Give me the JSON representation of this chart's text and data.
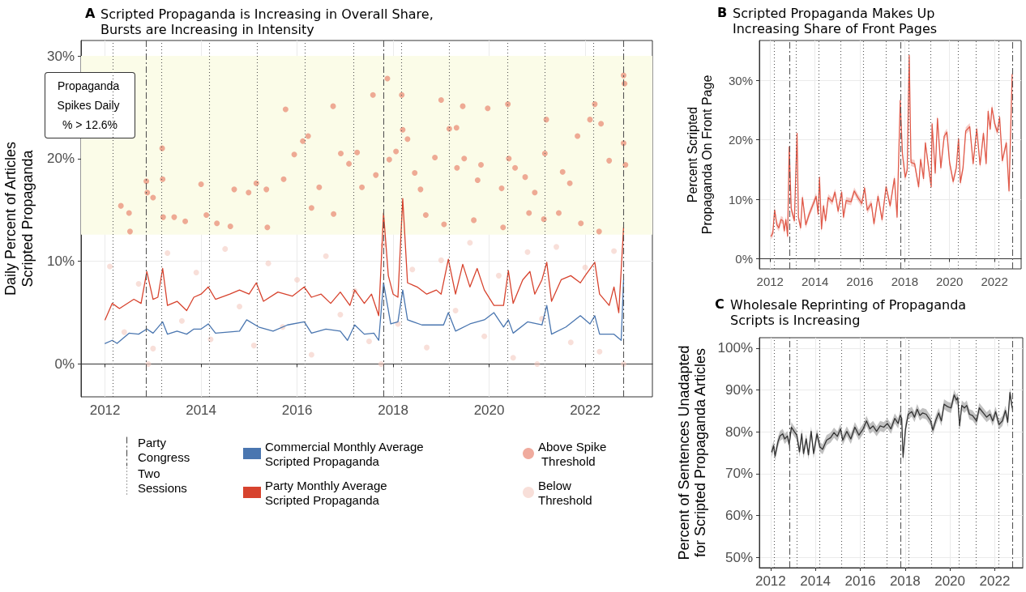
{
  "chart_data": [
    {
      "type": "line",
      "title": "A Scripted Propaganda is Increasing in Overall Share, Bursts are Increasing in Intensity",
      "ylabel": "Daily Percent of Articles Scripted Propaganda",
      "xlim": [
        2011.5,
        2023.4
      ],
      "xticks": [
        2012,
        2014,
        2016,
        2018,
        2020,
        2022
      ],
      "ylim": [
        -3.2,
        31.5
      ],
      "yticks": [
        {
          "value": 0,
          "label": "0%"
        },
        {
          "value": 10,
          "label": "10%"
        },
        {
          "value": 20,
          "label": "20%"
        },
        {
          "value": 30,
          "label": "30%"
        }
      ],
      "grid": true,
      "legend": "bottom",
      "bands": [
        {
          "axis": "y",
          "from": 12.6,
          "to": 30,
          "label": "Propaganda Spikes Daily % > 12.6%",
          "color": "#fbfce8"
        }
      ],
      "ref_lines": [
        {
          "axis": "x",
          "value": 2012.86,
          "label": "Party Congress",
          "color": "#555555",
          "line_style": "dashed"
        },
        {
          "axis": "x",
          "value": 2017.8,
          "color": "#555555",
          "line_style": "dashed"
        },
        {
          "axis": "x",
          "value": 2022.79,
          "color": "#555555",
          "line_style": "dashed"
        },
        {
          "axis": "x",
          "value": 2012.17,
          "label": "Two Sessions",
          "color": "#555555",
          "line_style": "dotted"
        },
        {
          "axis": "x",
          "value": 2013.17,
          "color": "#555555",
          "line_style": "dotted"
        },
        {
          "axis": "x",
          "value": 2014.17,
          "color": "#555555",
          "line_style": "dotted"
        },
        {
          "axis": "x",
          "value": 2015.16,
          "color": "#555555",
          "line_style": "dotted"
        },
        {
          "axis": "x",
          "value": 2016.17,
          "color": "#555555",
          "line_style": "dotted"
        },
        {
          "axis": "x",
          "value": 2017.17,
          "color": "#555555",
          "line_style": "dotted"
        },
        {
          "axis": "x",
          "value": 2018.17,
          "color": "#555555",
          "line_style": "dotted"
        },
        {
          "axis": "x",
          "value": 2019.17,
          "color": "#555555",
          "line_style": "dotted"
        },
        {
          "axis": "x",
          "value": 2020.39,
          "color": "#555555",
          "line_style": "dotted"
        },
        {
          "axis": "x",
          "value": 2021.16,
          "color": "#555555",
          "line_style": "dotted"
        },
        {
          "axis": "x",
          "value": 2022.18,
          "color": "#555555",
          "line_style": "dotted"
        }
      ],
      "series": [
        {
          "type": "scatter",
          "name": "Below Threshold",
          "color": "#f3c4ba",
          "marker": "circle",
          "x": [
            2012.1,
            2012.4,
            2012.7,
            2013.0,
            2013.3,
            2013.6,
            2013.9,
            2014.2,
            2014.5,
            2014.8,
            2015.1,
            2015.4,
            2015.7,
            2016.0,
            2016.3,
            2016.6,
            2016.9,
            2017.2,
            2017.5,
            2017.8,
            2018.1,
            2018.4,
            2018.7,
            2019.0,
            2019.3,
            2019.6,
            2019.9,
            2020.2,
            2020.5,
            2020.8,
            2021.1,
            2021.4,
            2021.7,
            2022.0,
            2022.3,
            2022.6,
            2022.8,
            2012.9,
            2017.75,
            2021.0
          ],
          "values": [
            9.5,
            3.1,
            7.8,
            1.5,
            10.8,
            4.2,
            8.9,
            2.4,
            11.2,
            5.6,
            1.8,
            9.8,
            3.6,
            8.2,
            0.9,
            10.5,
            4.8,
            7.1,
            2.2,
            11.6,
            3.9,
            9.2,
            1.6,
            10.1,
            5.2,
            11.8,
            2.7,
            8.6,
            0.6,
            10.9,
            4.4,
            11.4,
            2.1,
            9.4,
            1.2,
            11.0,
            0.0,
            0.0,
            0.0,
            0.0
          ]
        },
        {
          "type": "scatter",
          "name": "Above Spike Threshold",
          "color": "#e3664f",
          "marker": "circle",
          "x": [
            2012.33,
            2012.5,
            2012.52,
            2012.86,
            2012.88,
            2013.0,
            2013.19,
            2013.2,
            2013.21,
            2013.44,
            2013.67,
            2014.0,
            2014.11,
            2014.33,
            2014.69,
            2014.99,
            2015.15,
            2015.36,
            2015.72,
            2015.76,
            2015.94,
            2016.12,
            2016.23,
            2016.46,
            2016.75,
            2016.91,
            2017.08,
            2017.25,
            2017.35,
            2017.58,
            2017.64,
            2017.88,
            2017.92,
            2018.06,
            2018.18,
            2018.2,
            2018.3,
            2018.45,
            2018.57,
            2018.87,
            2019.0,
            2019.17,
            2019.32,
            2019.45,
            2019.48,
            2019.33,
            2019.76,
            2019.83,
            2019.97,
            2020.26,
            2020.39,
            2020.41,
            2020.54,
            2020.75,
            2020.95,
            2021.19,
            2021.16,
            2021.53,
            2021.68,
            2021.84,
            2022.1,
            2022.2,
            2022.33,
            2022.5,
            2022.8,
            2022.8,
            2022.82,
            2022.84,
            2019.68,
            2021.14,
            2021.91,
            2020.29,
            2019.06,
            2018.68,
            2016.76,
            2016.3,
            2015.38,
            2014.61,
            2020.83,
            2021.45,
            2022.29
          ],
          "values": [
            15.4,
            14.7,
            12.9,
            17.8,
            16.7,
            16.2,
            21.0,
            18.0,
            14.3,
            14.3,
            13.9,
            17.5,
            14.5,
            13.7,
            17.0,
            16.7,
            17.6,
            17.0,
            18.0,
            24.8,
            20.4,
            21.7,
            22.2,
            17.2,
            25.1,
            20.5,
            19.5,
            20.6,
            17.2,
            26.2,
            18.4,
            27.8,
            19.9,
            20.7,
            26.2,
            22.8,
            21.9,
            18.6,
            17.0,
            20.1,
            25.7,
            22.9,
            23.0,
            25.1,
            20.0,
            19.1,
            17.9,
            19.4,
            24.9,
            17.1,
            25.3,
            20.0,
            19.1,
            18.2,
            16.7,
            23.8,
            20.5,
            18.7,
            17.6,
            22.2,
            23.8,
            25.3,
            23.4,
            19.8,
            21.5,
            28.1,
            27.3,
            19.4,
            14.0,
            14.1,
            13.7,
            13.3,
            13.6,
            14.5,
            14.6,
            15.2,
            13.3,
            13.4,
            14.7,
            14.7,
            12.9
          ]
        },
        {
          "type": "line",
          "name": "Commercial Monthly Average Scripted Propaganda",
          "color": "#4a76b0",
          "x": [
            2012.0,
            2012.15,
            2012.25,
            2012.5,
            2012.7,
            2012.87,
            2013.0,
            2013.2,
            2013.3,
            2013.5,
            2013.7,
            2013.85,
            2014.0,
            2014.15,
            2014.3,
            2014.8,
            2014.95,
            2015.2,
            2015.5,
            2015.8,
            2016.15,
            2016.3,
            2016.6,
            2016.9,
            2017.05,
            2017.2,
            2017.4,
            2017.6,
            2017.7,
            2017.8,
            2017.95,
            2018.1,
            2018.2,
            2018.3,
            2018.6,
            2018.9,
            2019.05,
            2019.15,
            2019.3,
            2019.6,
            2019.9,
            2020.1,
            2020.3,
            2020.4,
            2020.5,
            2020.8,
            2021.1,
            2021.2,
            2021.3,
            2021.6,
            2021.9,
            2022.1,
            2022.2,
            2022.3,
            2022.6,
            2022.75,
            2022.8
          ],
          "values": [
            2.0,
            2.3,
            2.0,
            3.0,
            2.9,
            3.4,
            3.0,
            4.1,
            2.9,
            3.2,
            2.9,
            3.4,
            3.4,
            3.9,
            3.0,
            3.2,
            4.3,
            3.6,
            3.2,
            3.8,
            4.1,
            3.0,
            3.4,
            3.2,
            2.3,
            3.8,
            2.9,
            3.0,
            2.3,
            7.9,
            3.9,
            4.1,
            7.2,
            4.3,
            3.8,
            3.8,
            3.8,
            5.0,
            3.2,
            3.9,
            4.3,
            5.0,
            3.6,
            4.3,
            3.0,
            4.1,
            3.8,
            5.7,
            2.9,
            3.6,
            4.7,
            3.9,
            4.7,
            2.9,
            2.9,
            2.3,
            8.2
          ]
        },
        {
          "type": "line",
          "name": "Party Monthly Average Scripted Propaganda",
          "color": "#d7432e",
          "x": [
            2012.0,
            2012.15,
            2012.3,
            2012.6,
            2012.75,
            2012.87,
            2013.0,
            2013.1,
            2013.2,
            2013.3,
            2013.5,
            2013.7,
            2013.85,
            2014.0,
            2014.15,
            2014.3,
            2014.6,
            2014.8,
            2015.0,
            2015.15,
            2015.3,
            2015.6,
            2015.9,
            2016.15,
            2016.3,
            2016.5,
            2016.7,
            2016.9,
            2017.1,
            2017.2,
            2017.4,
            2017.55,
            2017.7,
            2017.8,
            2017.9,
            2018.0,
            2018.1,
            2018.2,
            2018.3,
            2018.5,
            2018.7,
            2018.9,
            2019.0,
            2019.15,
            2019.3,
            2019.45,
            2019.6,
            2019.75,
            2019.9,
            2020.1,
            2020.3,
            2020.4,
            2020.5,
            2020.7,
            2020.85,
            2020.95,
            2021.1,
            2021.2,
            2021.3,
            2021.5,
            2021.7,
            2021.9,
            2022.0,
            2022.2,
            2022.3,
            2022.5,
            2022.6,
            2022.7,
            2022.8
          ],
          "values": [
            4.3,
            5.9,
            5.4,
            6.3,
            5.9,
            9.0,
            6.3,
            6.5,
            9.3,
            5.7,
            6.1,
            5.2,
            6.5,
            6.8,
            7.5,
            6.3,
            6.8,
            7.2,
            6.8,
            7.9,
            6.1,
            7.0,
            6.6,
            7.5,
            6.5,
            6.8,
            5.9,
            7.0,
            5.7,
            7.2,
            5.9,
            6.8,
            4.7,
            14.7,
            8.6,
            6.8,
            6.5,
            16.1,
            7.9,
            7.5,
            6.8,
            7.2,
            6.8,
            10.2,
            6.8,
            9.7,
            7.5,
            9.3,
            7.2,
            5.7,
            5.7,
            9.1,
            5.9,
            8.2,
            9.0,
            6.8,
            8.2,
            9.9,
            6.1,
            8.2,
            8.6,
            7.9,
            8.6,
            9.9,
            6.8,
            5.7,
            7.5,
            5.0,
            13.3
          ]
        }
      ]
    },
    {
      "type": "line",
      "title": "B Scripted Propaganda Makes Up Increasing Share of Front Pages",
      "ylabel": "Percent Scripted Propaganda On Front Page",
      "xlim": [
        2011.52,
        2023.19
      ],
      "xticks": [
        2012,
        2014,
        2016,
        2018,
        2020,
        2022
      ],
      "ylim": [
        -1.7,
        36.7
      ],
      "yticks": [
        {
          "value": 0,
          "label": "0%"
        },
        {
          "value": 10,
          "label": "10%"
        },
        {
          "value": 20,
          "label": "20%"
        },
        {
          "value": 30,
          "label": "30%"
        }
      ],
      "grid": true,
      "ref_lines": [
        {
          "axis": "x",
          "value": 2012.86,
          "color": "#555555",
          "line_style": "dashed"
        },
        {
          "axis": "x",
          "value": 2017.8,
          "color": "#555555",
          "line_style": "dashed"
        },
        {
          "axis": "x",
          "value": 2022.79,
          "color": "#555555",
          "line_style": "dashed"
        },
        {
          "axis": "x",
          "value": 2012.17,
          "color": "#555555",
          "line_style": "dotted"
        },
        {
          "axis": "x",
          "value": 2013.17,
          "color": "#555555",
          "line_style": "dotted"
        },
        {
          "axis": "x",
          "value": 2014.17,
          "color": "#555555",
          "line_style": "dotted"
        },
        {
          "axis": "x",
          "value": 2015.16,
          "color": "#555555",
          "line_style": "dotted"
        },
        {
          "axis": "x",
          "value": 2016.17,
          "color": "#555555",
          "line_style": "dotted"
        },
        {
          "axis": "x",
          "value": 2017.17,
          "color": "#555555",
          "line_style": "dotted"
        },
        {
          "axis": "x",
          "value": 2018.17,
          "color": "#555555",
          "line_style": "dotted"
        },
        {
          "axis": "x",
          "value": 2019.17,
          "color": "#555555",
          "line_style": "dotted"
        },
        {
          "axis": "x",
          "value": 2020.39,
          "color": "#555555",
          "line_style": "dotted"
        },
        {
          "axis": "x",
          "value": 2021.16,
          "color": "#555555",
          "line_style": "dotted"
        },
        {
          "axis": "x",
          "value": 2022.18,
          "color": "#555555",
          "line_style": "dotted"
        }
      ],
      "series": [
        {
          "type": "line",
          "color": "#e05a4a",
          "x": [
            2012.04,
            2012.12,
            2012.2,
            2012.3,
            2012.39,
            2012.48,
            2012.57,
            2012.63,
            2012.7,
            2012.78,
            2012.85,
            2012.94,
            2013.08,
            2013.2,
            2013.26,
            2013.36,
            2013.44,
            2013.59,
            2013.74,
            2013.93,
            2014.05,
            2014.14,
            2014.2,
            2014.29,
            2014.38,
            2014.47,
            2014.59,
            2014.77,
            2014.89,
            2015.03,
            2015.19,
            2015.27,
            2015.39,
            2015.61,
            2015.75,
            2015.91,
            2016.09,
            2016.21,
            2016.33,
            2016.51,
            2016.63,
            2016.81,
            2016.99,
            2017.17,
            2017.35,
            2017.54,
            2017.66,
            2017.8,
            2017.9,
            2018.02,
            2018.11,
            2018.2,
            2018.28,
            2018.44,
            2018.62,
            2018.71,
            2018.84,
            2018.92,
            2019.08,
            2019.18,
            2019.22,
            2019.36,
            2019.46,
            2019.61,
            2019.76,
            2019.88,
            2020.0,
            2020.16,
            2020.3,
            2020.4,
            2020.48,
            2020.6,
            2020.72,
            2020.9,
            2021.05,
            2021.21,
            2021.36,
            2021.51,
            2021.63,
            2021.72,
            2021.81,
            2021.89,
            2022.01,
            2022.13,
            2022.23,
            2022.35,
            2022.53,
            2022.65,
            2022.79
          ],
          "values": [
            3.8,
            4.3,
            8.2,
            5.7,
            5.2,
            6.6,
            6.4,
            4.7,
            6.6,
            3.8,
            18.8,
            8.4,
            6.4,
            21.1,
            7.0,
            5.2,
            10.3,
            5.7,
            7.5,
            9.3,
            10.5,
            7.5,
            13.7,
            5.0,
            8.9,
            6.4,
            10.3,
            9.6,
            11.2,
            8.0,
            11.2,
            7.0,
            9.8,
            9.6,
            11.4,
            10.3,
            9.3,
            11.9,
            8.2,
            9.3,
            5.9,
            10.5,
            6.6,
            12.1,
            8.9,
            13.5,
            7.0,
            26.6,
            17.6,
            13.7,
            14.9,
            34.2,
            16.2,
            16.0,
            12.1,
            16.7,
            13.5,
            19.5,
            14.9,
            12.1,
            22.7,
            14.4,
            23.6,
            15.3,
            20.6,
            21.3,
            16.2,
            13.0,
            15.3,
            20.2,
            12.8,
            15.3,
            21.5,
            22.2,
            16.0,
            21.8,
            15.8,
            21.1,
            16.0,
            24.8,
            21.8,
            25.4,
            22.7,
            21.3,
            23.8,
            16.5,
            19.5,
            11.4,
            31.0
          ],
          "lower": [
            3.2,
            3.7,
            7.6,
            5.1,
            4.6,
            6.0,
            5.8,
            4.1,
            6.0,
            3.2,
            18.2,
            7.8,
            5.8,
            20.5,
            6.4,
            4.6,
            9.7,
            5.1,
            6.9,
            8.7,
            9.9,
            6.9,
            13.1,
            4.4,
            8.3,
            5.8,
            9.7,
            9.0,
            10.6,
            7.4,
            10.6,
            6.4,
            9.2,
            9.0,
            10.8,
            9.7,
            8.7,
            11.3,
            7.6,
            8.7,
            5.3,
            9.9,
            6.0,
            11.5,
            8.3,
            12.9,
            6.4,
            26.0,
            17.0,
            13.1,
            14.3,
            33.6,
            15.6,
            15.4,
            11.5,
            16.1,
            12.9,
            18.9,
            14.3,
            11.5,
            22.1,
            13.8,
            23.0,
            14.7,
            20.0,
            20.7,
            15.6,
            12.4,
            14.7,
            19.6,
            12.2,
            14.7,
            20.9,
            21.6,
            15.4,
            21.2,
            15.2,
            20.5,
            15.4,
            24.2,
            21.2,
            24.8,
            22.1,
            20.7,
            23.2,
            15.9,
            18.9,
            10.8,
            30.4
          ],
          "upper": [
            4.4,
            4.9,
            8.8,
            6.3,
            5.8,
            7.2,
            7.0,
            5.3,
            7.2,
            4.4,
            19.4,
            9.0,
            7.0,
            21.7,
            7.6,
            5.8,
            10.9,
            6.3,
            8.1,
            9.9,
            11.1,
            8.1,
            14.3,
            5.6,
            9.5,
            7.0,
            10.9,
            10.2,
            11.8,
            8.6,
            11.8,
            7.6,
            10.4,
            10.2,
            12.0,
            10.9,
            9.9,
            12.5,
            8.8,
            9.9,
            6.5,
            11.1,
            7.2,
            12.7,
            9.5,
            14.1,
            7.6,
            27.2,
            18.2,
            14.3,
            15.5,
            34.8,
            16.8,
            16.6,
            12.7,
            17.3,
            14.1,
            20.1,
            15.5,
            12.7,
            23.3,
            15.0,
            24.2,
            15.9,
            21.2,
            21.9,
            16.8,
            13.6,
            15.9,
            20.8,
            13.4,
            15.9,
            22.1,
            22.8,
            16.6,
            22.4,
            16.4,
            21.7,
            16.6,
            25.4,
            22.4,
            26.0,
            23.3,
            21.9,
            24.4,
            17.1,
            20.1,
            12.0,
            31.6
          ]
        }
      ]
    },
    {
      "type": "line",
      "title": "C Wholesale Reprinting of Propaganda Scripts is Increasing",
      "ylabel": "Percent of Sentences Unadapted for Scripted Propaganda Articles",
      "xlim": [
        2011.5,
        2023.25
      ],
      "xticks": [
        2012,
        2014,
        2016,
        2018,
        2020,
        2022
      ],
      "ylim": [
        47.5,
        102.5
      ],
      "yticks": [
        {
          "value": 50,
          "label": "50%"
        },
        {
          "value": 60,
          "label": "60%"
        },
        {
          "value": 70,
          "label": "70%"
        },
        {
          "value": 80,
          "label": "80%"
        },
        {
          "value": 90,
          "label": "90%"
        },
        {
          "value": 100,
          "label": "100%"
        }
      ],
      "grid": true,
      "ref_lines": [
        {
          "axis": "x",
          "value": 2012.86,
          "color": "#555555",
          "line_style": "dashed"
        },
        {
          "axis": "x",
          "value": 2017.8,
          "color": "#555555",
          "line_style": "dashed"
        },
        {
          "axis": "x",
          "value": 2022.79,
          "color": "#555555",
          "line_style": "dashed"
        },
        {
          "axis": "x",
          "value": 2012.17,
          "color": "#555555",
          "line_style": "dotted"
        },
        {
          "axis": "x",
          "value": 2013.17,
          "color": "#555555",
          "line_style": "dotted"
        },
        {
          "axis": "x",
          "value": 2014.17,
          "color": "#555555",
          "line_style": "dotted"
        },
        {
          "axis": "x",
          "value": 2015.16,
          "color": "#555555",
          "line_style": "dotted"
        },
        {
          "axis": "x",
          "value": 2016.17,
          "color": "#555555",
          "line_style": "dotted"
        },
        {
          "axis": "x",
          "value": 2017.17,
          "color": "#555555",
          "line_style": "dotted"
        },
        {
          "axis": "x",
          "value": 2018.17,
          "color": "#555555",
          "line_style": "dotted"
        },
        {
          "axis": "x",
          "value": 2019.17,
          "color": "#555555",
          "line_style": "dotted"
        },
        {
          "axis": "x",
          "value": 2020.39,
          "color": "#555555",
          "line_style": "dotted"
        },
        {
          "axis": "x",
          "value": 2021.16,
          "color": "#555555",
          "line_style": "dotted"
        },
        {
          "axis": "x",
          "value": 2022.18,
          "color": "#555555",
          "line_style": "dotted"
        }
      ],
      "series": [
        {
          "type": "line",
          "color": "#333333",
          "x": [
            2012.05,
            2012.14,
            2012.2,
            2012.33,
            2012.42,
            2012.54,
            2012.63,
            2012.75,
            2012.83,
            2012.93,
            2013.05,
            2013.17,
            2013.29,
            2013.39,
            2013.47,
            2013.59,
            2013.69,
            2013.81,
            2013.92,
            2014.07,
            2014.2,
            2014.32,
            2014.5,
            2014.68,
            2014.83,
            2014.98,
            2015.12,
            2015.22,
            2015.4,
            2015.58,
            2015.76,
            2015.94,
            2016.13,
            2016.28,
            2016.43,
            2016.57,
            2016.73,
            2016.89,
            2017.05,
            2017.21,
            2017.37,
            2017.54,
            2017.69,
            2017.78,
            2017.85,
            2017.91,
            2018.02,
            2018.14,
            2018.3,
            2018.42,
            2018.54,
            2018.66,
            2018.78,
            2018.94,
            2019.14,
            2019.24,
            2019.38,
            2019.5,
            2019.62,
            2019.74,
            2019.9,
            2020.05,
            2020.19,
            2020.29,
            2020.35,
            2020.43,
            2020.53,
            2020.65,
            2020.75,
            2020.87,
            2021.01,
            2021.19,
            2021.31,
            2021.49,
            2021.64,
            2021.79,
            2021.91,
            2022.04,
            2022.19,
            2022.34,
            2022.48,
            2022.58,
            2022.68,
            2022.76,
            2022.79
          ],
          "values": [
            75.2,
            76.7,
            74.2,
            77.6,
            79.0,
            79.5,
            78.3,
            79.0,
            77.0,
            81.1,
            80.1,
            79.2,
            75.2,
            79.5,
            74.8,
            78.3,
            74.5,
            80.1,
            74.8,
            79.5,
            76.4,
            75.8,
            78.0,
            78.6,
            79.8,
            78.9,
            80.7,
            78.0,
            80.1,
            78.3,
            81.1,
            79.2,
            80.7,
            82.6,
            80.7,
            81.4,
            80.1,
            81.4,
            81.1,
            82.0,
            80.7,
            83.2,
            82.0,
            83.9,
            83.2,
            73.9,
            80.7,
            84.2,
            84.8,
            83.5,
            85.4,
            83.9,
            84.5,
            84.2,
            82.6,
            80.4,
            82.9,
            84.5,
            82.6,
            86.6,
            86.0,
            85.7,
            88.8,
            87.6,
            88.2,
            81.4,
            86.3,
            85.7,
            86.3,
            84.2,
            83.9,
            82.6,
            85.7,
            84.5,
            83.5,
            84.2,
            82.6,
            84.8,
            81.7,
            82.6,
            85.1,
            82.3,
            89.4,
            86.3,
            85.7
          ],
          "lower": [
            74.0,
            75.5,
            73.0,
            76.4,
            77.8,
            78.3,
            77.1,
            77.8,
            75.8,
            79.9,
            78.9,
            78.0,
            74.0,
            78.3,
            73.6,
            77.1,
            73.3,
            78.9,
            73.6,
            78.3,
            75.2,
            74.6,
            76.8,
            77.4,
            78.6,
            77.7,
            79.5,
            76.8,
            78.9,
            77.1,
            79.9,
            78.0,
            79.5,
            81.4,
            79.5,
            80.2,
            78.9,
            80.2,
            79.9,
            80.8,
            79.5,
            82.0,
            80.8,
            82.7,
            82.0,
            72.7,
            79.5,
            83.0,
            83.6,
            82.3,
            84.2,
            82.7,
            83.3,
            83.0,
            81.4,
            79.2,
            81.7,
            83.3,
            81.4,
            85.4,
            84.8,
            84.5,
            87.6,
            86.4,
            87.0,
            80.2,
            85.1,
            84.5,
            85.1,
            83.0,
            82.7,
            81.4,
            84.5,
            83.3,
            82.3,
            83.0,
            81.4,
            83.6,
            80.5,
            81.4,
            83.9,
            81.1,
            88.2,
            85.1,
            84.5
          ],
          "upper": [
            76.4,
            77.9,
            75.4,
            78.8,
            80.2,
            80.7,
            79.5,
            80.2,
            78.2,
            82.3,
            81.3,
            80.4,
            76.4,
            80.7,
            76.0,
            79.5,
            75.7,
            81.3,
            76.0,
            80.7,
            77.6,
            77.0,
            79.2,
            79.8,
            81.0,
            80.1,
            81.9,
            79.2,
            81.3,
            79.5,
            82.3,
            80.4,
            81.9,
            83.8,
            81.9,
            82.6,
            81.3,
            82.6,
            82.3,
            83.2,
            81.9,
            84.4,
            83.2,
            85.1,
            84.4,
            75.1,
            81.9,
            85.4,
            86.0,
            84.7,
            86.6,
            85.1,
            85.7,
            85.4,
            83.8,
            81.6,
            84.1,
            85.7,
            83.8,
            87.8,
            87.2,
            86.9,
            90.0,
            88.8,
            89.4,
            82.6,
            87.5,
            86.9,
            87.5,
            85.4,
            85.1,
            83.8,
            86.9,
            85.7,
            84.7,
            85.4,
            83.8,
            86.0,
            82.9,
            83.8,
            86.3,
            83.5,
            90.6,
            87.5,
            86.9
          ]
        }
      ]
    }
  ]
}
